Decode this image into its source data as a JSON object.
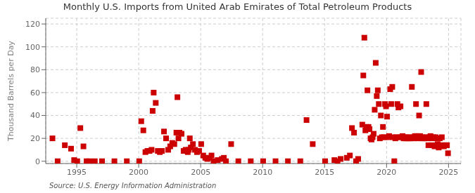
{
  "chart_data": {
    "type": "scatter",
    "title": "Monthly U.S. Imports from United Arab Emirates of Total Petroleum Products",
    "ylabel": "Thousand Barrels per Day",
    "annotations": [
      "Source: U.S. Energy Information Administration"
    ],
    "color": "#CC0000",
    "marker": "square",
    "grid": true,
    "xlim": [
      1992.5,
      2026.0
    ],
    "ylim": [
      -2,
      125
    ],
    "xticks": [
      1995,
      2000,
      2005,
      2010,
      2015,
      2020,
      2025
    ],
    "yticks": [
      0,
      20,
      40,
      60,
      80,
      100,
      120
    ],
    "x": [
      1993.0417,
      1993.4583,
      1994.0417,
      1994.5417,
      1994.7917,
      1995.0417,
      1995.2917,
      1995.5417,
      1995.7917,
      1996.0417,
      1996.4583,
      1997.0417,
      1998.0417,
      1999.0417,
      2000.0417,
      2000.2083,
      2000.375,
      2000.5417,
      2000.7083,
      2000.875,
      2001.0417,
      2001.125,
      2001.2083,
      2001.375,
      2001.5417,
      2001.7083,
      2001.875,
      2002.0417,
      2002.2083,
      2002.375,
      2002.5417,
      2002.7083,
      2002.875,
      2003.0417,
      2003.125,
      2003.2083,
      2003.2917,
      2003.4583,
      2003.625,
      2003.7917,
      2003.9583,
      2004.0417,
      2004.125,
      2004.2083,
      2004.375,
      2004.5417,
      2004.7083,
      2004.875,
      2005.0417,
      2005.2083,
      2005.375,
      2005.5417,
      2005.7083,
      2005.875,
      2006.0417,
      2006.375,
      2006.7083,
      2006.875,
      2007.0417,
      2007.4583,
      2008.0417,
      2009.0417,
      2010.0417,
      2011.0417,
      2012.0417,
      2013.0417,
      2013.5417,
      2014.0417,
      2015.0417,
      2015.7917,
      2016.0417,
      2016.2917,
      2016.7917,
      2017.0417,
      2017.2083,
      2017.375,
      2017.5417,
      2017.7083,
      2018.0417,
      2018.125,
      2018.2083,
      2018.2917,
      2018.375,
      2018.4583,
      2018.5417,
      2018.625,
      2018.7083,
      2018.7917,
      2018.875,
      2018.9583,
      2019.0417,
      2019.125,
      2019.2083,
      2019.2917,
      2019.375,
      2019.4583,
      2019.5417,
      2019.625,
      2019.7083,
      2019.7917,
      2019.875,
      2019.9583,
      2020.0417,
      2020.125,
      2020.2083,
      2020.2917,
      2020.375,
      2020.4583,
      2020.5417,
      2020.625,
      2020.7083,
      2020.7917,
      2020.875,
      2020.9583,
      2021.0417,
      2021.125,
      2021.2083,
      2021.2917,
      2021.375,
      2021.4583,
      2021.5417,
      2021.625,
      2021.7083,
      2021.7917,
      2021.875,
      2021.9583,
      2022.0417,
      2022.125,
      2022.2083,
      2022.2917,
      2022.375,
      2022.4583,
      2022.5417,
      2022.625,
      2022.7083,
      2022.7917,
      2022.875,
      2022.9583,
      2023.0417,
      2023.125,
      2023.2083,
      2023.2917,
      2023.375,
      2023.4583,
      2023.5417,
      2023.625,
      2023.7083,
      2023.7917,
      2023.875,
      2023.9583,
      2024.0417,
      2024.125,
      2024.2083,
      2024.2917,
      2024.375,
      2024.4583,
      2024.5417,
      2024.625,
      2024.7083,
      2024.7917,
      2024.875,
      2024.9583
    ],
    "values": [
      20,
      0,
      14,
      11,
      1,
      0,
      29,
      13,
      0,
      0,
      0,
      0,
      0,
      0,
      0,
      35,
      27,
      8,
      9,
      9,
      10,
      44,
      60,
      51,
      9,
      8,
      9,
      26,
      20,
      10,
      13,
      16,
      15,
      25,
      56,
      20,
      25,
      24,
      9,
      10,
      8,
      10,
      20,
      12,
      15,
      10,
      8,
      9,
      15,
      5,
      3,
      2,
      3,
      5,
      0,
      1,
      2,
      3,
      0,
      15,
      0,
      0,
      0,
      0,
      0,
      0,
      36,
      15,
      0,
      1,
      0,
      2,
      3,
      5,
      29,
      25,
      0,
      2,
      32,
      75,
      108,
      27,
      30,
      62,
      30,
      28,
      20,
      19,
      21,
      24,
      45,
      86,
      57,
      62,
      50,
      20,
      40,
      21,
      30,
      21,
      50,
      48,
      39,
      21,
      22,
      63,
      50,
      65,
      21,
      0,
      20,
      21,
      50,
      47,
      21,
      48,
      21,
      22,
      20,
      21,
      20,
      21,
      20,
      20,
      21,
      20,
      65,
      21,
      20,
      22,
      50,
      22,
      20,
      40,
      22,
      78,
      20,
      21,
      20,
      21,
      50,
      20,
      14,
      21,
      22,
      20,
      14,
      21,
      13,
      21,
      20,
      15,
      12,
      20,
      14,
      21,
      14,
      13,
      14,
      14,
      14,
      7
    ]
  }
}
